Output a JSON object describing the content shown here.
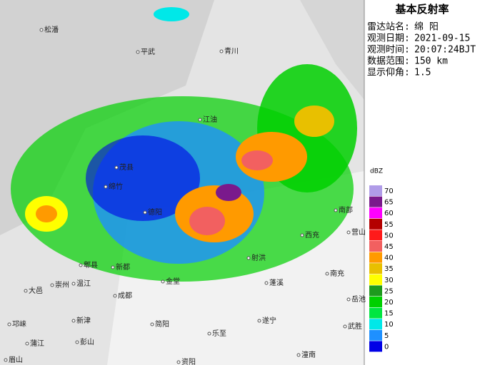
{
  "header": {
    "title": "基本反射率",
    "fields": [
      {
        "label": "雷达站名:",
        "value": "绵 阳"
      },
      {
        "label": "观测日期:",
        "value": "2021-09-15"
      },
      {
        "label": "观测时间:",
        "value": "20:07:24BJT"
      },
      {
        "label": "数据范围:",
        "value": "150 km"
      },
      {
        "label": "显示仰角:",
        "value": "1.5"
      }
    ]
  },
  "legend": {
    "unit": "dBZ",
    "items": [
      {
        "value": 70,
        "color": "#b09ce8"
      },
      {
        "value": 65,
        "color": "#7a1a8c"
      },
      {
        "value": 60,
        "color": "#ff00ff"
      },
      {
        "value": 55,
        "color": "#b40000"
      },
      {
        "value": 50,
        "color": "#ff1a1a"
      },
      {
        "value": 45,
        "color": "#f26060"
      },
      {
        "value": 40,
        "color": "#ff9a00"
      },
      {
        "value": 35,
        "color": "#e8c000"
      },
      {
        "value": 30,
        "color": "#ffff00"
      },
      {
        "value": 25,
        "color": "#1e9a1e"
      },
      {
        "value": 20,
        "color": "#00d000"
      },
      {
        "value": 15,
        "color": "#00e640"
      },
      {
        "value": 10,
        "color": "#00e8e8"
      },
      {
        "value": 5,
        "color": "#1e90ff"
      },
      {
        "value": 0,
        "color": "#0000e6"
      }
    ]
  },
  "map": {
    "places": [
      "松潘",
      "平武",
      "青川",
      "江油",
      "茂县",
      "绵竹",
      "德阳",
      "南部",
      "西充",
      "营山",
      "射洪",
      "郫县",
      "新都",
      "大邑",
      "崇州",
      "温江",
      "成都",
      "金堂",
      "蓬溪",
      "南充",
      "岳池",
      "新津",
      "简阳",
      "遂宁",
      "武胜",
      "邛崃",
      "蒲江",
      "彭山",
      "乐至",
      "潼南",
      "眉山",
      "资阳"
    ]
  }
}
